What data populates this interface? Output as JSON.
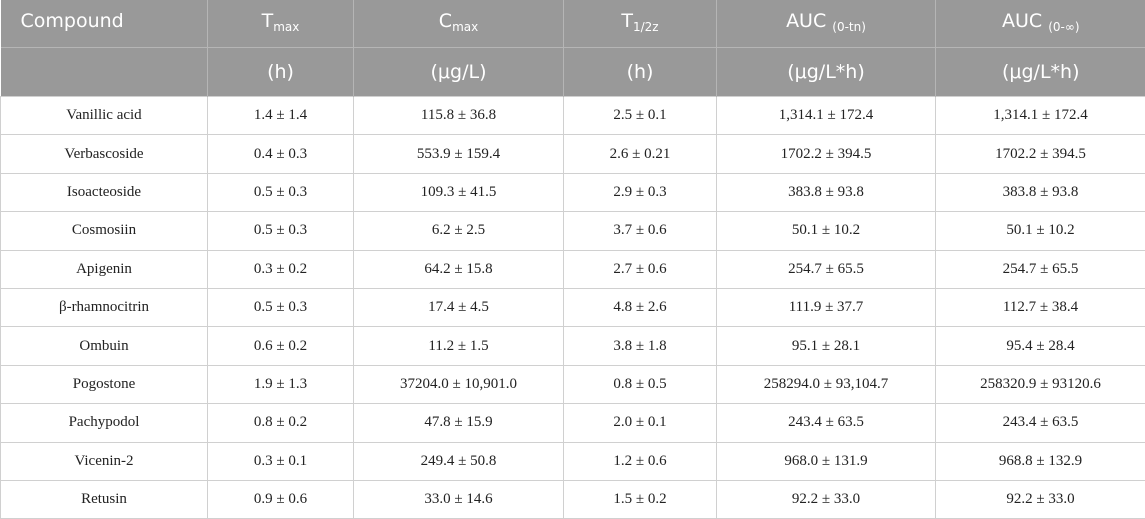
{
  "header": {
    "columns": [
      {
        "main": "Compound"
      },
      {
        "main": "T",
        "sub": "max"
      },
      {
        "main": "C",
        "sub": "max"
      },
      {
        "main": "T",
        "sub": "1/2z"
      },
      {
        "main": "AUC",
        "sub": "(0-tn)"
      },
      {
        "main": "AUC",
        "sub": "(0-∞)"
      }
    ],
    "units": [
      "(h)",
      "(μg/L)",
      "(h)",
      "(μg/L*h)",
      "(μg/L*h)"
    ]
  },
  "table": {
    "rows": [
      [
        "Vanillic acid",
        "1.4 ± 1.4",
        "115.8 ± 36.8",
        "2.5 ± 0.1",
        "1,314.1 ± 172.4",
        "1,314.1 ± 172.4"
      ],
      [
        "Verbascoside",
        "0.4 ± 0.3",
        "553.9 ± 159.4",
        "2.6 ± 0.21",
        "1702.2 ± 394.5",
        "1702.2 ± 394.5"
      ],
      [
        "Isoacteoside",
        "0.5 ± 0.3",
        "109.3 ± 41.5",
        "2.9 ± 0.3",
        "383.8 ± 93.8",
        "383.8 ± 93.8"
      ],
      [
        "Cosmosiin",
        "0.5 ± 0.3",
        "6.2 ± 2.5",
        "3.7 ± 0.6",
        "50.1 ± 10.2",
        "50.1 ± 10.2"
      ],
      [
        "Apigenin",
        "0.3 ± 0.2",
        "64.2 ± 15.8",
        "2.7 ± 0.6",
        "254.7 ± 65.5",
        "254.7 ± 65.5"
      ],
      [
        "β-rhamnocitrin",
        "0.5 ± 0.3",
        "17.4 ± 4.5",
        "4.8 ± 2.6",
        "111.9 ± 37.7",
        "112.7 ± 38.4"
      ],
      [
        "Ombuin",
        "0.6 ± 0.2",
        "11.2 ± 1.5",
        "3.8 ± 1.8",
        "95.1 ± 28.1",
        "95.4 ± 28.4"
      ],
      [
        "Pogostone",
        "1.9 ± 1.3",
        "37204.0 ± 10,901.0",
        "0.8 ± 0.5",
        "258294.0 ± 93,104.7",
        "258320.9 ± 93120.6"
      ],
      [
        "Pachypodol",
        "0.8 ± 0.2",
        "47.8 ± 15.9",
        "2.0 ± 0.1",
        "243.4 ± 63.5",
        "243.4 ± 63.5"
      ],
      [
        "Vicenin-2",
        "0.3 ± 0.1",
        "249.4 ± 50.8",
        "1.2 ± 0.6",
        "968.0 ± 131.9",
        "968.8 ± 132.9"
      ],
      [
        "Retusin",
        "0.9 ± 0.6",
        "33.0 ± 14.6",
        "1.5 ± 0.2",
        "92.2 ± 33.0",
        "92.2 ± 33.0"
      ]
    ]
  }
}
